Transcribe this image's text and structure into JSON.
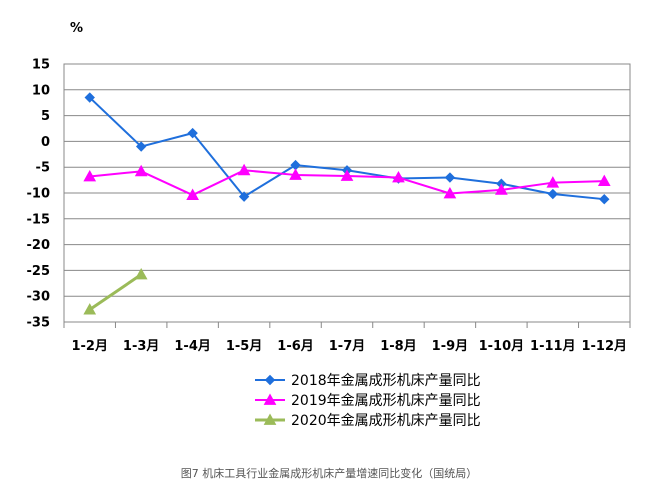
{
  "chart_data": {
    "type": "line",
    "unit_label": "%",
    "categories": [
      "1-2月",
      "1-3月",
      "1-4月",
      "1-5月",
      "1-6月",
      "1-7月",
      "1-8月",
      "1-9月",
      "1-10月",
      "1-11月",
      "1-12月"
    ],
    "ylim": [
      -35,
      15
    ],
    "yticks": [
      15,
      10,
      5,
      0,
      -5,
      -10,
      -15,
      -20,
      -25,
      -30,
      -35
    ],
    "grid": true,
    "legend_placement": "bottom",
    "series": [
      {
        "name": "2018年金属成形机床产量同比",
        "color": "#1f6fdc",
        "marker": "diamond",
        "values": [
          8.5,
          -1.0,
          1.6,
          -10.7,
          -4.6,
          -5.6,
          -7.2,
          -7.0,
          -8.2,
          -10.2,
          -11.2
        ]
      },
      {
        "name": "2019年金属成形机床产量同比",
        "color": "#ff00ff",
        "marker": "triangle",
        "values": [
          -6.8,
          -5.8,
          -10.4,
          -5.6,
          -6.5,
          -6.7,
          -7.0,
          -10.1,
          -9.4,
          -8.0,
          -7.7
        ]
      },
      {
        "name": "2020年金属成形机床产量同比",
        "color": "#9bbb59",
        "marker": "triangle",
        "values": [
          -32.6,
          -25.8,
          null,
          null,
          null,
          null,
          null,
          null,
          null,
          null,
          null
        ]
      }
    ]
  },
  "caption": "图7     机床工具行业金属成形机床产量增速同比变化（国统局）"
}
